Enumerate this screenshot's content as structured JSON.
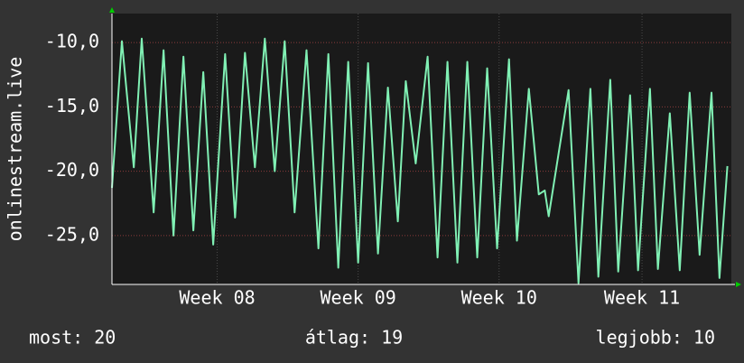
{
  "chart_data": {
    "type": "line",
    "y_label": "onlinestream.live",
    "x": [
      0,
      0.5,
      1.1,
      1.5,
      2.1,
      2.6,
      3.1,
      3.6,
      4.1,
      4.6,
      5.1,
      5.7,
      6.2,
      6.7,
      7.2,
      7.7,
      8.2,
      8.7,
      9.2,
      9.8,
      10.4,
      10.9,
      11.4,
      11.9,
      12.4,
      12.9,
      13.4,
      13.9,
      14.4,
      14.8,
      15.3,
      15.9,
      16.4,
      16.9,
      17.4,
      17.9,
      18.4,
      18.9,
      19.4,
      20,
      20.4,
      21,
      21.5,
      21.8,
      22,
      23,
      23.5,
      24.1,
      24.5,
      25.1,
      25.5,
      26.1,
      26.5,
      27.1,
      27.5,
      28.1,
      28.6,
      29.1,
      29.6,
      30.2,
      30.6,
      31
    ],
    "series": [
      {
        "color": "#80f0b4",
        "values": [
          -21.3,
          -9.9,
          -19.7,
          -9.7,
          -23.2,
          -10.6,
          -25,
          -11.1,
          -24.6,
          -12.3,
          -25.7,
          -10.9,
          -23.6,
          -10.8,
          -19.7,
          -9.7,
          -20,
          -9.9,
          -23.2,
          -10.6,
          -26,
          -10.9,
          -27.5,
          -11.5,
          -27.1,
          -11.6,
          -26.4,
          -13.5,
          -23.9,
          -13,
          -19.4,
          -11.1,
          -26.7,
          -11.5,
          -27.1,
          -11.5,
          -26.7,
          -12,
          -26,
          -11.3,
          -25.4,
          -13.6,
          -21.8,
          -21.5,
          -23.5,
          -13.7,
          -28.7,
          -13.6,
          -28.2,
          -12.9,
          -27.8,
          -14.1,
          -27.7,
          -13.6,
          -27.6,
          -15.5,
          -27.7,
          -13.9,
          -26.5,
          -13.9,
          -28.3,
          -19.6
        ]
      }
    ],
    "xlim": [
      0,
      31.2
    ],
    "xticks": [
      {
        "value": 5.3,
        "label": "Week 08"
      },
      {
        "value": 12.4,
        "label": "Week 09"
      },
      {
        "value": 19.5,
        "label": "Week 10"
      },
      {
        "value": 26.7,
        "label": "Week 11"
      }
    ],
    "ylim": [
      -28.8,
      -7.75
    ],
    "yticks": [
      {
        "value": -10,
        "label": "-10,0"
      },
      {
        "value": -15,
        "label": "-15,0"
      },
      {
        "value": -20,
        "label": "-20,0"
      },
      {
        "value": -25,
        "label": "-25,0"
      }
    ],
    "grid": true,
    "summary": [
      "most: 20",
      "átlag: 19",
      "legjobb: 10"
    ]
  }
}
